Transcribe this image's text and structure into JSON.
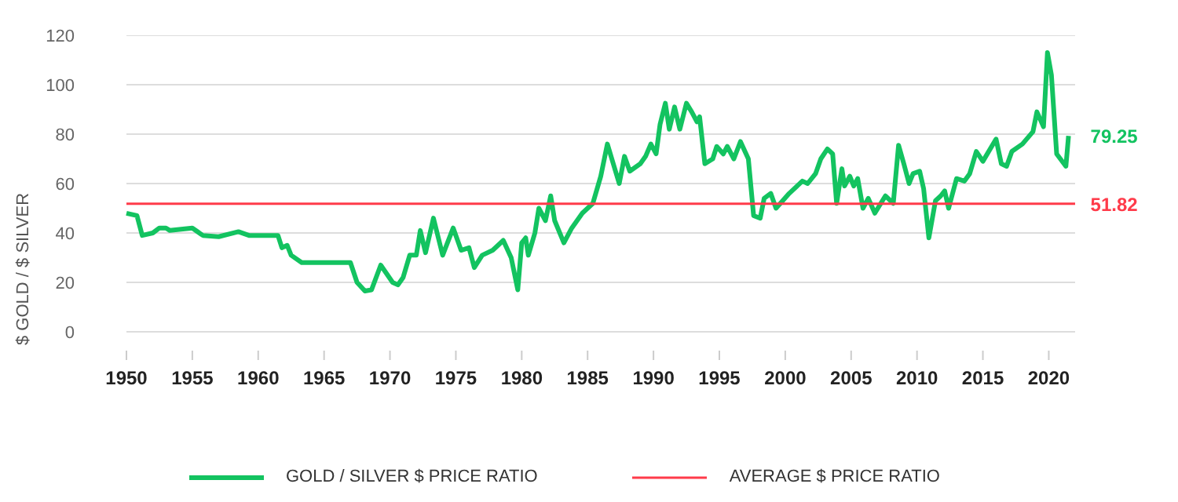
{
  "chart_data": {
    "type": "line",
    "ylabel": "$ GOLD / $ SILVER",
    "xlim": [
      1950,
      2022
    ],
    "xticks": [
      1950,
      1955,
      1960,
      1965,
      1970,
      1975,
      1980,
      1985,
      1990,
      1995,
      2000,
      2005,
      2010,
      2015,
      2020
    ],
    "ylim": [
      0,
      120
    ],
    "yticks": [
      0,
      20,
      40,
      60,
      80,
      100,
      120
    ],
    "grid": "y",
    "legend": "bottom",
    "line_style": "solid",
    "series": [
      {
        "name": "GOLD / SILVER $ PRICE RATIO",
        "color": "#13c360",
        "x": [
          1950,
          1950.8,
          1951.2,
          1952,
          1952.5,
          1953,
          1953.3,
          1955,
          1955.8,
          1957,
          1958.5,
          1959.3,
          1961.5,
          1961.8,
          1962.2,
          1962.5,
          1963.3,
          1967,
          1967.5,
          1968.1,
          1968.6,
          1969.3,
          1970.2,
          1970.6,
          1971.0,
          1971.5,
          1972.0,
          1972.3,
          1972.7,
          1973.3,
          1974.0,
          1974.8,
          1975.4,
          1976,
          1976.4,
          1977,
          1977.8,
          1978.6,
          1979.2,
          1979.7,
          1980,
          1980.3,
          1980.5,
          1981,
          1981.3,
          1981.8,
          1982.2,
          1982.5,
          1983.2,
          1983.8,
          1984.6,
          1985.4,
          1986,
          1986.5,
          1987.4,
          1987.8,
          1988.2,
          1989,
          1989.4,
          1989.8,
          1990.2,
          1990.5,
          1990.9,
          1991.2,
          1991.6,
          1992,
          1992.5,
          1992.9,
          1993.3,
          1993.5,
          1993.9,
          1994.5,
          1994.8,
          1995.3,
          1995.6,
          1996.1,
          1996.6,
          1997.2,
          1997.6,
          1998.1,
          1998.4,
          1998.9,
          1999.3,
          2000.3,
          2001.3,
          2001.7,
          2002.3,
          2002.7,
          2003.2,
          2003.6,
          2003.9,
          2004.3,
          2004.5,
          2004.9,
          2005.2,
          2005.5,
          2005.9,
          2006.3,
          2006.8,
          2007.6,
          2008.2,
          2008.6,
          2009,
          2009.4,
          2009.7,
          2010.2,
          2010.5,
          2010.9,
          2011.4,
          2011.8,
          2012.1,
          2012.4,
          2013,
          2013.6,
          2014,
          2014.5,
          2015,
          2016,
          2016.4,
          2016.8,
          2017.2,
          2018,
          2018.8,
          2019.1,
          2019.6,
          2019.9,
          2020.2,
          2020.6,
          2021.3,
          2021.5
        ],
        "values": [
          48,
          47,
          39,
          40,
          42,
          42,
          41,
          42,
          39,
          38.5,
          40.5,
          39,
          39,
          34,
          35,
          31,
          28,
          28,
          20,
          16.5,
          17,
          27,
          20,
          19,
          22,
          31,
          31,
          41,
          32,
          46,
          31,
          42,
          33,
          34,
          26,
          31,
          33,
          37,
          30,
          17,
          36,
          38,
          31,
          40,
          50,
          45,
          55,
          45,
          36,
          42,
          48,
          52,
          63,
          76,
          60,
          71,
          65,
          68,
          71,
          76,
          72,
          84,
          92.5,
          82,
          91,
          82,
          92.5,
          89,
          85,
          87,
          68,
          70,
          75,
          72,
          75,
          70,
          77,
          70,
          47,
          46,
          54,
          56,
          50,
          56,
          61,
          60,
          64,
          70,
          74,
          72,
          52,
          66,
          59,
          63,
          59,
          62,
          50,
          54,
          48,
          55,
          52,
          75.5,
          68,
          60,
          64,
          65,
          58,
          38,
          53,
          55,
          57,
          50,
          62,
          61,
          64,
          73,
          69,
          78,
          68,
          67,
          73,
          76,
          81,
          89,
          83,
          113,
          104,
          72,
          67,
          79.25
        ]
      }
    ],
    "ref_lines": [
      {
        "axis": "y",
        "value": 51.82,
        "label": "AVERAGE $ PRICE RATIO",
        "color": "#ff3b4a"
      }
    ],
    "annotations": [
      {
        "text": "79.25",
        "x": 2021.5,
        "y": 79.25
      },
      {
        "text": "51.82",
        "x": 2021.5,
        "y": 51.82
      }
    ]
  }
}
